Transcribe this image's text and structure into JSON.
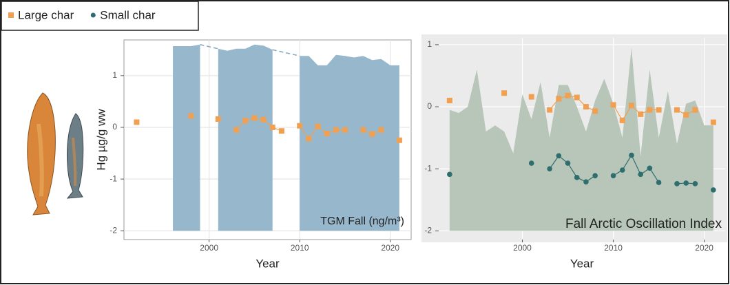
{
  "legend_title_free": true,
  "chart_data": [
    {
      "type": "line",
      "x_label": "Year",
      "y_label": "Hg µg/g ww",
      "annotation": "TGM Fall (ng/m³)",
      "xlim": [
        1990.6,
        2022.3
      ],
      "ylim": [
        -2.17,
        1.69
      ],
      "xticks": [
        2000,
        2010,
        2020
      ],
      "yticks": [
        -2,
        -1,
        0,
        1
      ],
      "grid": true,
      "area": {
        "color": "#97b8cc",
        "connector_color": "#7fa6c2",
        "base": -2,
        "x": [
          1996,
          1997,
          1998,
          1999,
          2000,
          2001,
          2002,
          2003,
          2004,
          2005,
          2006,
          2007,
          2008,
          2009,
          2010,
          2011,
          2012,
          2013,
          2014,
          2015,
          2016,
          2017,
          2018,
          2019,
          2020,
          2021
        ],
        "values": [
          1.57,
          1.57,
          1.57,
          1.6,
          null,
          1.52,
          1.48,
          1.52,
          1.52,
          1.6,
          1.58,
          1.5,
          null,
          null,
          1.38,
          1.38,
          1.2,
          1.2,
          1.4,
          1.38,
          1.35,
          1.38,
          1.3,
          1.32,
          1.2,
          1.2
        ]
      },
      "series": [
        {
          "name": "Large char",
          "color": "#f0a050",
          "marker": "square",
          "x": [
            1992,
            1993,
            1994,
            1995,
            1996,
            1997,
            1998,
            1999,
            2000,
            2001,
            2002,
            2003,
            2004,
            2005,
            2006,
            2007,
            2008,
            2009,
            2010,
            2011,
            2012,
            2013,
            2014,
            2015,
            2016,
            2017,
            2018,
            2019,
            2020,
            2021
          ],
          "values": [
            0.1,
            null,
            null,
            null,
            null,
            null,
            0.22,
            null,
            null,
            0.16,
            null,
            -0.05,
            0.13,
            0.18,
            0.15,
            0.0,
            -0.07,
            null,
            0.03,
            -0.22,
            0.02,
            -0.12,
            -0.05,
            -0.05,
            null,
            -0.05,
            -0.13,
            -0.05,
            null,
            -0.25
          ]
        }
      ]
    },
    {
      "type": "line",
      "x_label": "Year",
      "annotation": "Fall Arctic Oscillation Index",
      "xlim": [
        1990.8,
        2022.3
      ],
      "ylim": [
        -2.14,
        1.11
      ],
      "xticks": [
        2000,
        2010,
        2020
      ],
      "yticks": [
        -2,
        -1,
        0,
        1
      ],
      "grid": true,
      "area": {
        "color": "#b7c6b8",
        "base": -2,
        "x": [
          1992,
          1993,
          1994,
          1995,
          1996,
          1997,
          1998,
          1999,
          2000,
          2001,
          2002,
          2003,
          2004,
          2005,
          2006,
          2007,
          2008,
          2009,
          2010,
          2011,
          2012,
          2013,
          2014,
          2015,
          2016,
          2017,
          2018,
          2019,
          2020,
          2021
        ],
        "values": [
          -0.05,
          -0.1,
          0.0,
          0.6,
          -0.4,
          -0.3,
          -0.4,
          -0.75,
          0.2,
          -0.2,
          0.4,
          -0.5,
          0.35,
          0.35,
          0.0,
          -0.4,
          0.1,
          0.45,
          0.05,
          -0.5,
          0.95,
          -0.8,
          0.6,
          -0.5,
          0.25,
          -0.6,
          0.05,
          0.1,
          -0.3,
          -0.3
        ]
      },
      "series": [
        {
          "name": "Large char",
          "color": "#f0a050",
          "marker": "square",
          "x": [
            1992,
            1993,
            1994,
            1995,
            1996,
            1997,
            1998,
            1999,
            2000,
            2001,
            2002,
            2003,
            2004,
            2005,
            2006,
            2007,
            2008,
            2009,
            2010,
            2011,
            2012,
            2013,
            2014,
            2015,
            2016,
            2017,
            2018,
            2019,
            2020,
            2021
          ],
          "values": [
            0.1,
            null,
            null,
            null,
            null,
            null,
            0.22,
            null,
            null,
            0.16,
            null,
            -0.05,
            0.13,
            0.18,
            0.15,
            0.0,
            -0.07,
            null,
            0.03,
            -0.22,
            0.02,
            -0.12,
            -0.05,
            -0.05,
            null,
            -0.05,
            -0.13,
            -0.05,
            null,
            -0.25
          ]
        },
        {
          "name": "Small char",
          "color": "#2e6e6e",
          "marker": "circle",
          "x": [
            1992,
            1993,
            1994,
            1995,
            1996,
            1997,
            1998,
            1999,
            2000,
            2001,
            2002,
            2003,
            2004,
            2005,
            2006,
            2007,
            2008,
            2009,
            2010,
            2011,
            2012,
            2013,
            2014,
            2015,
            2016,
            2017,
            2018,
            2019,
            2020,
            2021
          ],
          "values": [
            -1.09,
            null,
            null,
            null,
            null,
            null,
            null,
            null,
            null,
            -0.91,
            null,
            -1.0,
            -0.79,
            -0.91,
            -1.14,
            -1.21,
            -1.11,
            null,
            -1.11,
            -1.02,
            -0.78,
            -1.09,
            -0.99,
            -1.22,
            null,
            -1.24,
            -1.23,
            -1.24,
            null,
            -1.34
          ]
        }
      ]
    }
  ]
}
